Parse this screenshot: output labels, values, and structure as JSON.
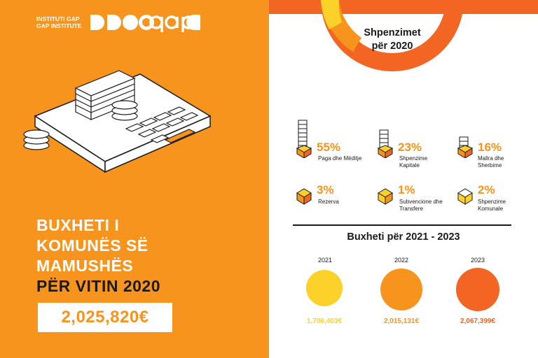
{
  "logo": {
    "line1": "INSTITUTI GAP",
    "line2": "GAP INSTITUTE"
  },
  "title": {
    "line1": "BUXHETI I",
    "line2": "KOMUNËS SË",
    "line3": "MAMUSHËS",
    "line4": "PËR VITIN 2020"
  },
  "total_amount": "2,025,820€",
  "spending": {
    "title_line1": "Shpenzimet",
    "title_line2": "për 2020",
    "categories": [
      {
        "percent": "55%",
        "label_line1": "Paga dhe Mëditje",
        "label_line2": "",
        "icon": "tall-stack-icon"
      },
      {
        "percent": "23%",
        "label_line1": "Shpenzime",
        "label_line2": "Kapitale",
        "icon": "medium-stack-icon"
      },
      {
        "percent": "16%",
        "label_line1": "Mallra dhe",
        "label_line2": "Sherbime",
        "icon": "short-stack-icon"
      },
      {
        "percent": "3%",
        "label_line1": "Rezerva",
        "label_line2": "",
        "icon": "box-icon"
      },
      {
        "percent": "1%",
        "label_line1": "Subvencione dhe",
        "label_line2": "Transfere",
        "icon": "box-icon"
      },
      {
        "percent": "2%",
        "label_line1": "Shpenzime",
        "label_line2": "Komunale",
        "icon": "box-icon"
      }
    ]
  },
  "budget": {
    "title": "Buxheti për 2021 - 2023",
    "years": [
      {
        "year": "2021",
        "amount": "1,706,403€",
        "color": "#fcd12a"
      },
      {
        "year": "2022",
        "amount": "2,015,131€",
        "color": "#f7941d"
      },
      {
        "year": "2023",
        "amount": "2,067,399€",
        "color": "#f26522"
      }
    ]
  },
  "colors": {
    "orange": "#f7941d",
    "dark_orange": "#f26522",
    "yellow": "#fcd12a",
    "text": "#1a1a1a"
  }
}
